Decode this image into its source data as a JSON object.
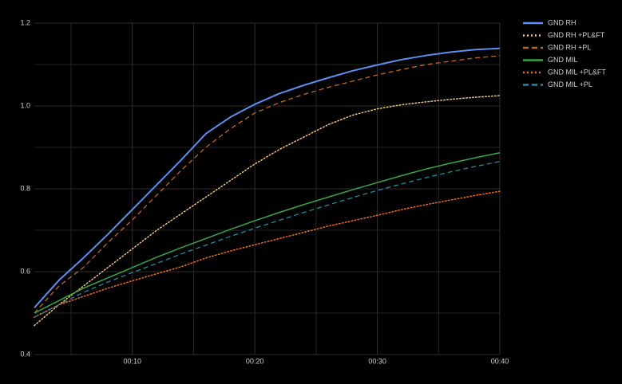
{
  "chart_data": {
    "type": "line",
    "x": [
      2,
      4,
      6,
      8,
      10,
      12,
      14,
      16,
      18,
      20,
      22,
      24,
      26,
      28,
      30,
      32,
      34,
      36,
      38,
      40
    ],
    "series": [
      {
        "name": "GND RH",
        "color": "#5b8ff0",
        "dash": "solid",
        "width": 2,
        "values": [
          0.513,
          0.579,
          0.633,
          0.69,
          0.75,
          0.81,
          0.87,
          0.933,
          0.973,
          1.004,
          1.03,
          1.05,
          1.068,
          1.085,
          1.099,
          1.112,
          1.122,
          1.13,
          1.136,
          1.139
        ]
      },
      {
        "name": "GND RH +PL&FT",
        "color": "#f3c27a",
        "dash": "dotted",
        "width": 1.5,
        "values": [
          0.47,
          0.52,
          0.565,
          0.61,
          0.655,
          0.7,
          0.74,
          0.78,
          0.82,
          0.86,
          0.895,
          0.925,
          0.955,
          0.978,
          0.993,
          1.003,
          1.01,
          1.016,
          1.021,
          1.025
        ]
      },
      {
        "name": "GND RH +PL",
        "color": "#c4651e",
        "dash": "dashed",
        "width": 1.3,
        "values": [
          0.5,
          0.565,
          0.61,
          0.67,
          0.725,
          0.785,
          0.845,
          0.9,
          0.945,
          0.983,
          1.008,
          1.028,
          1.045,
          1.06,
          1.075,
          1.088,
          1.1,
          1.108,
          1.116,
          1.121
        ]
      },
      {
        "name": "GND MIL",
        "color": "#3aa64a",
        "dash": "solid",
        "width": 1.5,
        "values": [
          0.5,
          0.53,
          0.56,
          0.585,
          0.61,
          0.635,
          0.658,
          0.68,
          0.702,
          0.723,
          0.743,
          0.762,
          0.78,
          0.798,
          0.815,
          0.832,
          0.848,
          0.862,
          0.875,
          0.887
        ]
      },
      {
        "name": "GND MIL +PL&FT",
        "color": "#f06a1d",
        "dash": "dotted",
        "width": 1.5,
        "values": [
          0.49,
          0.52,
          0.54,
          0.56,
          0.578,
          0.595,
          0.612,
          0.633,
          0.65,
          0.665,
          0.68,
          0.695,
          0.71,
          0.723,
          0.736,
          0.75,
          0.762,
          0.773,
          0.784,
          0.794
        ]
      },
      {
        "name": "GND MIL +PL",
        "color": "#1f8da0",
        "dash": "dashed",
        "width": 1.3,
        "values": [
          0.49,
          0.52,
          0.55,
          0.575,
          0.598,
          0.62,
          0.643,
          0.664,
          0.685,
          0.705,
          0.724,
          0.743,
          0.761,
          0.779,
          0.796,
          0.812,
          0.827,
          0.841,
          0.854,
          0.866
        ]
      }
    ],
    "xlim": [
      2,
      40
    ],
    "ylim": [
      0.4,
      1.2
    ],
    "xticks": [
      {
        "value": 10,
        "label": "00:10"
      },
      {
        "value": 20,
        "label": "00:20"
      },
      {
        "value": 30,
        "label": "00:30"
      },
      {
        "value": 40,
        "label": "00:40"
      }
    ],
    "yticks": [
      {
        "value": 0.4,
        "label": "0.4"
      },
      {
        "value": 0.6,
        "label": "0.6"
      },
      {
        "value": 0.8,
        "label": "0.8"
      },
      {
        "value": 1.0,
        "label": "1.0"
      },
      {
        "value": 1.2,
        "label": "1.2"
      }
    ],
    "minor_xticks": [
      5,
      15,
      25,
      35
    ],
    "minor_yticks": [
      0.5,
      0.7,
      0.9,
      1.1
    ],
    "grid": true,
    "legend": "right"
  }
}
